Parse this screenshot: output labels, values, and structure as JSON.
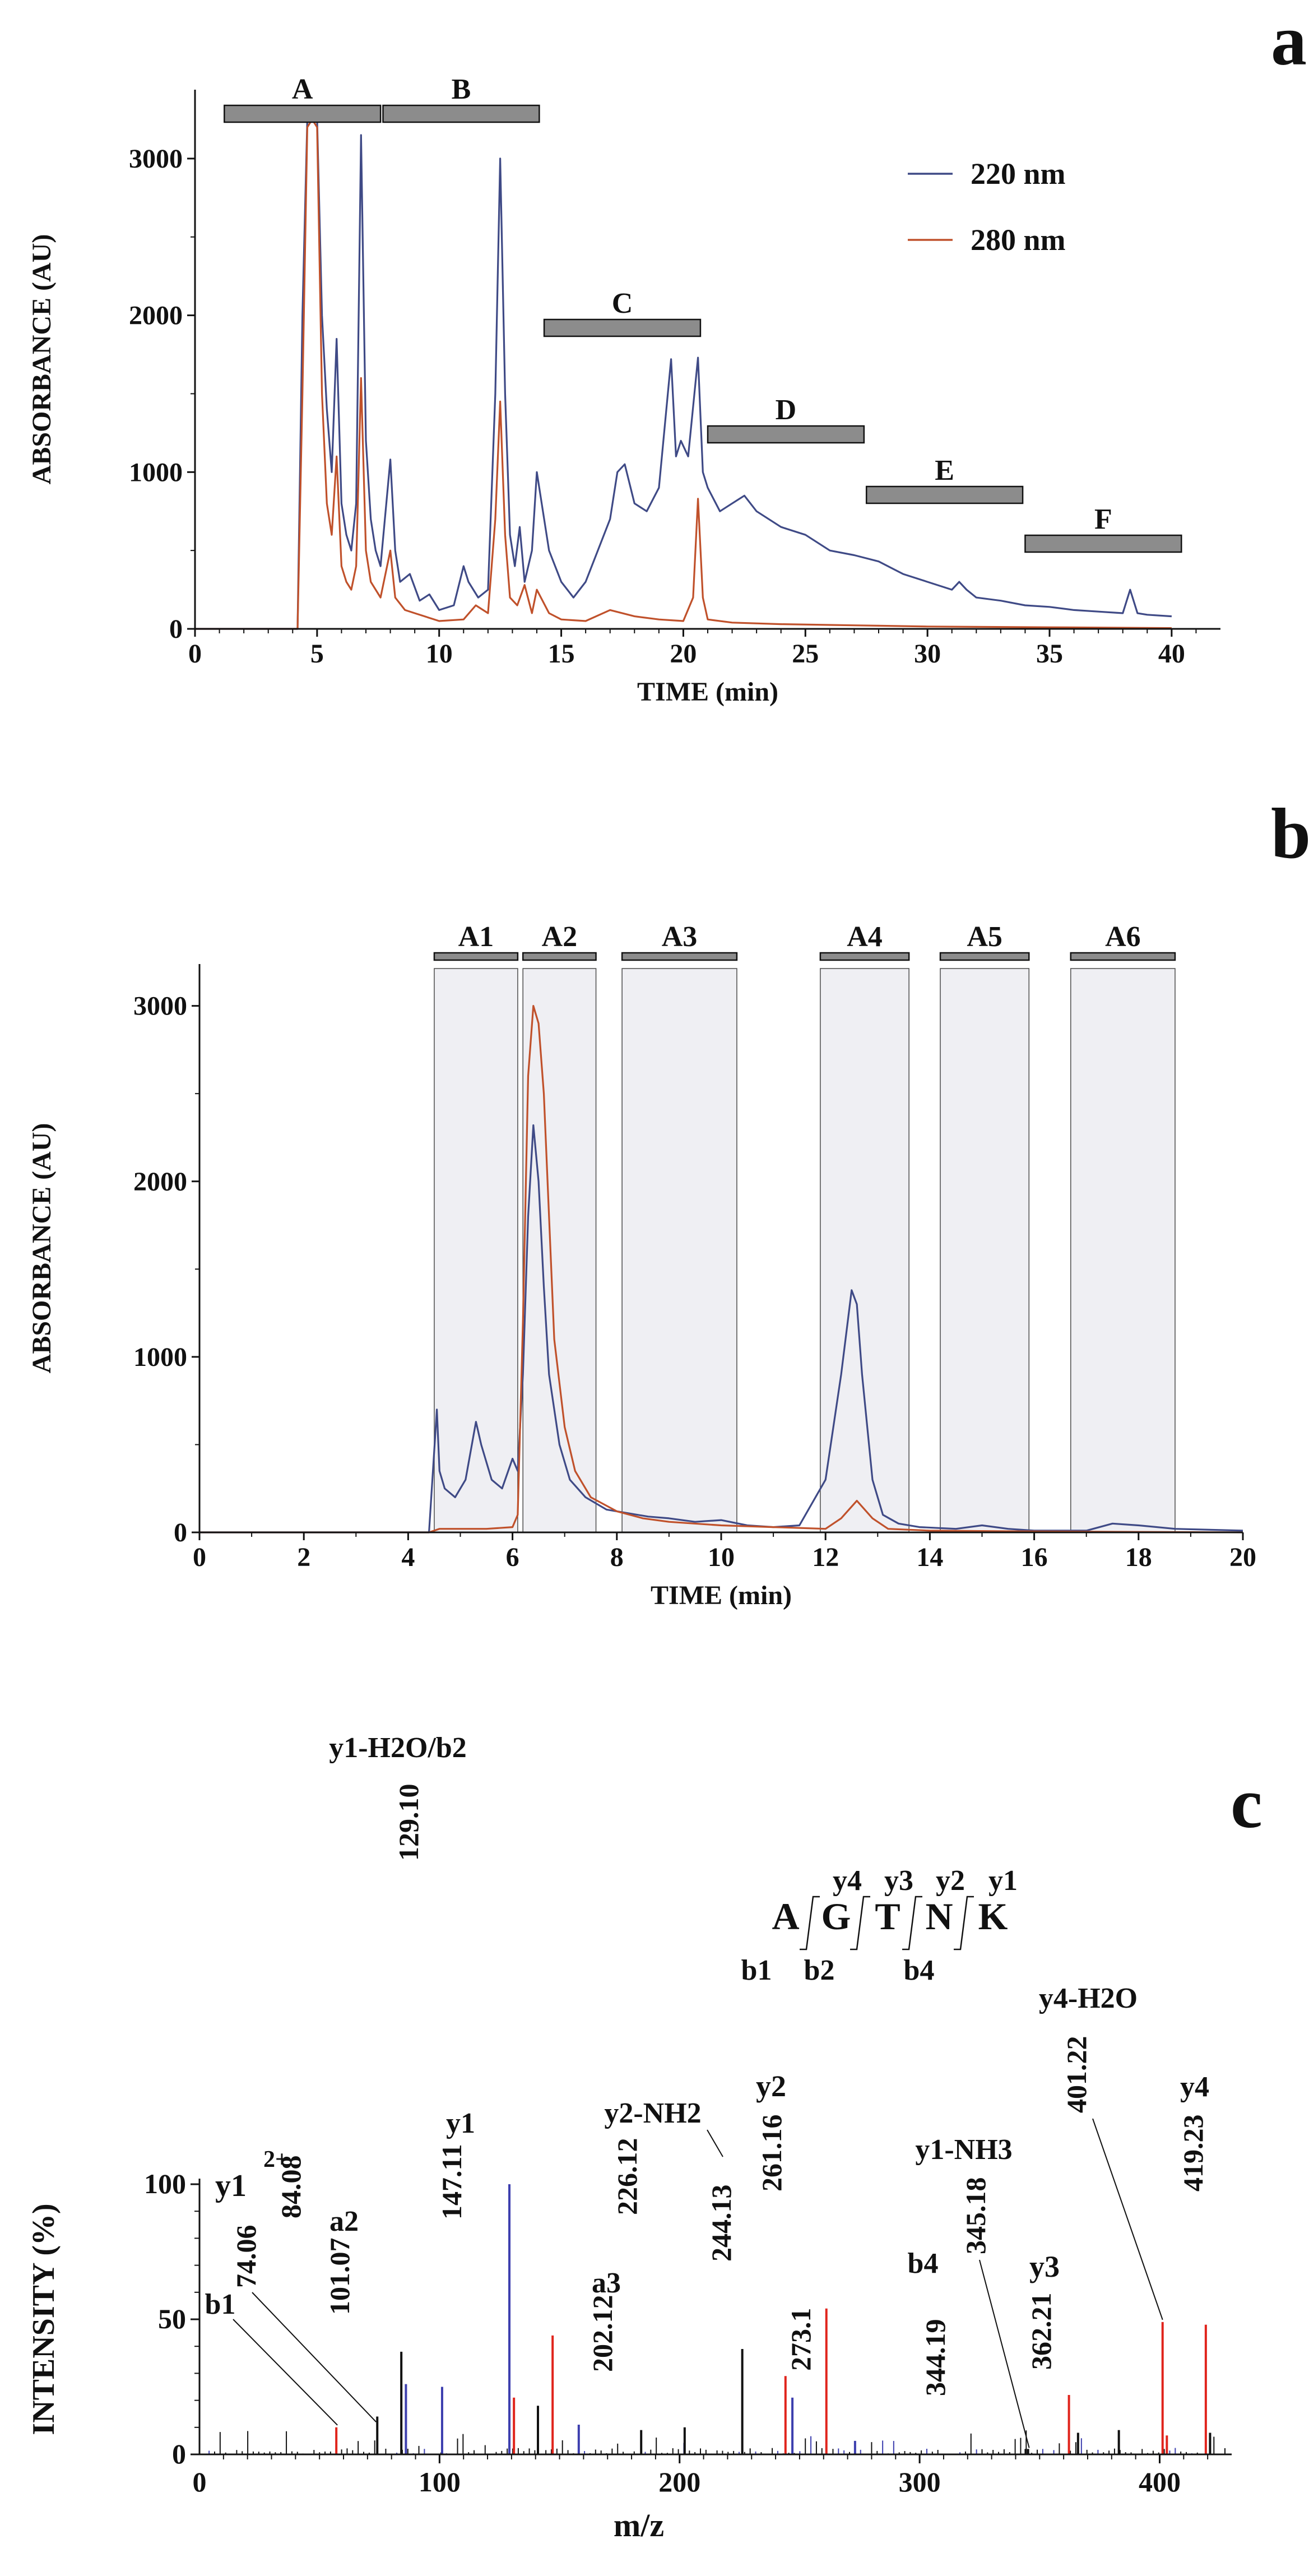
{
  "colors": {
    "line_220": "#3f4a86",
    "line_280": "#c0512b",
    "bar_fill": "#8c8c8c",
    "shade_fill": "#efeff3",
    "spec_black": "#111111",
    "spec_red": "#e0241c",
    "spec_blue": "#3d3fae"
  },
  "chart_data": [
    {
      "panel": "a",
      "type": "line",
      "xlabel": "TIME (min)",
      "ylabel": "ABSORBANCE (AU)",
      "xlim": [
        0,
        42
      ],
      "ylim": [
        0,
        3300
      ],
      "xticks": [
        0,
        5,
        10,
        15,
        20,
        25,
        30,
        35,
        40
      ],
      "yticks": [
        0,
        1000,
        2000,
        3000
      ],
      "legend": [
        "220 nm",
        "280 nm"
      ],
      "fractions": [
        {
          "label": "A",
          "start": 1.2,
          "end": 7.6
        },
        {
          "label": "B",
          "start": 7.7,
          "end": 14.1
        },
        {
          "label": "C",
          "start": 14.3,
          "end": 20.7
        },
        {
          "label": "D",
          "start": 21.0,
          "end": 27.4
        },
        {
          "label": "E",
          "start": 27.5,
          "end": 33.9
        },
        {
          "label": "F",
          "start": 34.0,
          "end": 40.4
        }
      ],
      "series": [
        {
          "name": "220 nm",
          "x": [
            0,
            4.2,
            4.4,
            4.6,
            4.8,
            5.0,
            5.2,
            5.4,
            5.6,
            5.8,
            6.0,
            6.2,
            6.4,
            6.6,
            6.8,
            7.0,
            7.2,
            7.4,
            7.6,
            8.0,
            8.2,
            8.4,
            8.8,
            9.2,
            9.6,
            10.0,
            10.6,
            11.0,
            11.2,
            11.6,
            12.0,
            12.3,
            12.5,
            12.7,
            12.9,
            13.1,
            13.3,
            13.5,
            13.8,
            14.0,
            14.2,
            14.5,
            15.0,
            15.5,
            16.0,
            16.5,
            17.0,
            17.3,
            17.6,
            18.0,
            18.5,
            19.0,
            19.5,
            19.7,
            19.9,
            20.2,
            20.6,
            20.8,
            21.0,
            21.5,
            22.0,
            22.5,
            23.0,
            23.5,
            24.0,
            25.0,
            26.0,
            27.0,
            28.0,
            29.0,
            30.0,
            31.0,
            31.3,
            31.6,
            32.0,
            33.0,
            34.0,
            35.0,
            36.0,
            37.0,
            38.0,
            38.3,
            38.6,
            39.0,
            40.0
          ],
          "y": [
            0,
            0,
            2000,
            3250,
            3270,
            3250,
            2000,
            1400,
            1000,
            1850,
            800,
            600,
            500,
            800,
            3150,
            1200,
            700,
            500,
            400,
            1080,
            500,
            300,
            350,
            180,
            220,
            120,
            150,
            400,
            300,
            200,
            250,
            1500,
            3000,
            1500,
            600,
            400,
            650,
            300,
            500,
            1000,
            800,
            500,
            300,
            200,
            300,
            500,
            700,
            1000,
            1050,
            800,
            750,
            900,
            1720,
            1100,
            1200,
            1100,
            1730,
            1000,
            900,
            750,
            800,
            850,
            750,
            700,
            650,
            600,
            500,
            470,
            430,
            350,
            300,
            250,
            300,
            250,
            200,
            180,
            150,
            140,
            120,
            110,
            100,
            250,
            100,
            90,
            80
          ]
        },
        {
          "name": "280 nm",
          "x": [
            0,
            4.2,
            4.4,
            4.6,
            4.8,
            5.0,
            5.2,
            5.4,
            5.6,
            5.8,
            6.0,
            6.2,
            6.4,
            6.6,
            6.8,
            7.0,
            7.2,
            7.6,
            8.0,
            8.2,
            8.6,
            9.0,
            10.0,
            11.0,
            11.5,
            12.0,
            12.3,
            12.5,
            12.7,
            12.9,
            13.2,
            13.5,
            13.8,
            14.0,
            14.5,
            15.0,
            16.0,
            17.0,
            18.0,
            19.0,
            20.0,
            20.4,
            20.6,
            20.8,
            21.0,
            22.0,
            24.0,
            26.0,
            28.0,
            30.0,
            35.0,
            40.0
          ],
          "y": [
            0,
            0,
            1500,
            3200,
            3250,
            3200,
            1500,
            800,
            600,
            1100,
            400,
            300,
            250,
            400,
            1600,
            500,
            300,
            200,
            500,
            200,
            120,
            100,
            50,
            60,
            150,
            100,
            700,
            1450,
            600,
            200,
            150,
            280,
            100,
            250,
            100,
            60,
            50,
            120,
            80,
            60,
            50,
            200,
            830,
            200,
            60,
            40,
            30,
            25,
            20,
            15,
            10,
            5
          ]
        }
      ]
    },
    {
      "panel": "b",
      "type": "line",
      "xlabel": "TIME (min)",
      "ylabel": "ABSORBANCE (AU)",
      "xlim": [
        0,
        20
      ],
      "ylim": [
        0,
        3200
      ],
      "xticks": [
        0,
        2,
        4,
        6,
        8,
        10,
        12,
        14,
        16,
        18,
        20
      ],
      "yticks": [
        0,
        1000,
        2000,
        3000
      ],
      "fractions": [
        {
          "label": "A1",
          "start": 4.5,
          "end": 6.1
        },
        {
          "label": "A2",
          "start": 6.2,
          "end": 7.6
        },
        {
          "label": "A3",
          "start": 8.1,
          "end": 10.3
        },
        {
          "label": "A4",
          "start": 11.9,
          "end": 13.6
        },
        {
          "label": "A5",
          "start": 14.2,
          "end": 15.9
        },
        {
          "label": "A6",
          "start": 16.7,
          "end": 18.7
        }
      ],
      "series": [
        {
          "name": "220 nm",
          "x": [
            0,
            4.4,
            4.55,
            4.6,
            4.7,
            4.9,
            5.1,
            5.3,
            5.4,
            5.6,
            5.8,
            6.0,
            6.1,
            6.2,
            6.3,
            6.4,
            6.5,
            6.6,
            6.7,
            6.9,
            7.1,
            7.4,
            7.8,
            8.2,
            8.6,
            9.0,
            9.5,
            10.0,
            10.5,
            11.0,
            11.5,
            12.0,
            12.3,
            12.5,
            12.6,
            12.7,
            12.9,
            13.1,
            13.4,
            13.8,
            14.5,
            15.0,
            15.5,
            16.0,
            17.0,
            17.5,
            18.0,
            18.7,
            20.0
          ],
          "y": [
            0,
            0,
            700,
            350,
            250,
            200,
            300,
            630,
            500,
            300,
            250,
            420,
            350,
            900,
            1800,
            2320,
            2000,
            1400,
            900,
            500,
            300,
            200,
            130,
            110,
            90,
            80,
            60,
            70,
            40,
            30,
            40,
            300,
            900,
            1380,
            1300,
            900,
            300,
            100,
            50,
            30,
            20,
            40,
            20,
            10,
            10,
            50,
            40,
            20,
            10
          ]
        },
        {
          "name": "280 nm",
          "x": [
            0,
            4.4,
            4.6,
            5.0,
            5.5,
            6.0,
            6.1,
            6.2,
            6.3,
            6.4,
            6.5,
            6.6,
            6.7,
            6.8,
            7.0,
            7.2,
            7.5,
            8.0,
            8.5,
            9.0,
            10.0,
            11.0,
            12.0,
            12.3,
            12.6,
            12.9,
            13.2,
            14.0,
            16.0,
            20.0
          ],
          "y": [
            0,
            0,
            20,
            20,
            20,
            30,
            100,
            1200,
            2600,
            3000,
            2900,
            2500,
            1800,
            1100,
            600,
            350,
            200,
            120,
            80,
            60,
            40,
            30,
            20,
            80,
            180,
            80,
            20,
            10,
            5,
            0
          ]
        }
      ]
    },
    {
      "panel": "c",
      "type": "bar",
      "xlabel": "m/z",
      "ylabel": "INTENSITY (%)",
      "xlim": [
        0,
        430
      ],
      "ylim": [
        0,
        100
      ],
      "xticks": [
        0,
        100,
        200,
        300,
        400
      ],
      "yticks": [
        0,
        50,
        100
      ],
      "sequence": {
        "residues": [
          "A",
          "G",
          "T",
          "N",
          "K"
        ],
        "y_ions": [
          "y4",
          "y3",
          "y2",
          "y1"
        ],
        "b_ions": [
          "b1",
          "b2",
          "b4"
        ]
      },
      "peaks": [
        {
          "mz": 57,
          "intensity": 10,
          "ion": "b1",
          "color": "red"
        },
        {
          "mz": 74.06,
          "intensity": 14,
          "ion": "",
          "color": "black"
        },
        {
          "mz": 84.08,
          "intensity": 38,
          "ion": "",
          "color": "black"
        },
        {
          "mz": 86,
          "intensity": 26,
          "ion": "",
          "color": "blue"
        },
        {
          "mz": 101.07,
          "intensity": 25,
          "ion": "a2",
          "color": "blue"
        },
        {
          "mz": 129.1,
          "intensity": 100,
          "ion": "y1-H2O/b2",
          "color": "blue"
        },
        {
          "mz": 131,
          "intensity": 21,
          "ion": "",
          "color": "red"
        },
        {
          "mz": 141,
          "intensity": 18,
          "ion": "",
          "color": "black"
        },
        {
          "mz": 147.11,
          "intensity": 44,
          "ion": "y1",
          "color": "red"
        },
        {
          "mz": 158,
          "intensity": 11,
          "ion": "",
          "color": "blue"
        },
        {
          "mz": 184,
          "intensity": 9,
          "ion": "",
          "color": "black"
        },
        {
          "mz": 202.12,
          "intensity": 10,
          "ion": "a3",
          "color": "black"
        },
        {
          "mz": 226.12,
          "intensity": 39,
          "ion": "",
          "color": "black"
        },
        {
          "mz": 244.13,
          "intensity": 29,
          "ion": "y2-NH2",
          "color": "red"
        },
        {
          "mz": 247,
          "intensity": 21,
          "ion": "",
          "color": "blue"
        },
        {
          "mz": 261.16,
          "intensity": 54,
          "ion": "y2",
          "color": "red"
        },
        {
          "mz": 273.1,
          "intensity": 5,
          "ion": "",
          "color": "blue"
        },
        {
          "mz": 344.19,
          "intensity": 2,
          "ion": "b4",
          "color": "black"
        },
        {
          "mz": 345.18,
          "intensity": 2,
          "ion": "y1-NH3",
          "color": "black"
        },
        {
          "mz": 362.21,
          "intensity": 22,
          "ion": "y3",
          "color": "red"
        },
        {
          "mz": 366,
          "intensity": 8,
          "ion": "",
          "color": "black"
        },
        {
          "mz": 383,
          "intensity": 9,
          "ion": "",
          "color": "black"
        },
        {
          "mz": 401.22,
          "intensity": 49,
          "ion": "y4-H2O",
          "color": "red"
        },
        {
          "mz": 403,
          "intensity": 7,
          "ion": "",
          "color": "red"
        },
        {
          "mz": 419.23,
          "intensity": 48,
          "ion": "y4",
          "color": "red"
        },
        {
          "mz": 421,
          "intensity": 8,
          "ion": "",
          "color": "black"
        }
      ],
      "annotations": [
        {
          "text": "b1",
          "mz": 57
        },
        {
          "text": "y1",
          "mz": 74.06,
          "sup": "2+"
        },
        {
          "text": "74.06",
          "mz": 74.06
        },
        {
          "text": "84.08",
          "mz": 84.08
        },
        {
          "text": "a2",
          "mz": 101.07
        },
        {
          "text": "101.07",
          "mz": 101.07
        },
        {
          "text": "y1-H2O/b2",
          "mz": 129.1
        },
        {
          "text": "129.10",
          "mz": 129.1
        },
        {
          "text": "y1",
          "mz": 147.11
        },
        {
          "text": "147.11",
          "mz": 147.11
        },
        {
          "text": "a3",
          "mz": 202.12
        },
        {
          "text": "202.12",
          "mz": 202.12
        },
        {
          "text": "226.12",
          "mz": 226.12
        },
        {
          "text": "y2-NH2",
          "mz": 244.13
        },
        {
          "text": "244.13",
          "mz": 244.13
        },
        {
          "text": "y2",
          "mz": 261.16
        },
        {
          "text": "261.16",
          "mz": 261.16
        },
        {
          "text": "273.1",
          "mz": 273.1
        },
        {
          "text": "b4",
          "mz": 344.19
        },
        {
          "text": "344.19",
          "mz": 344.19
        },
        {
          "text": "y1-NH3",
          "mz": 345.18
        },
        {
          "text": "345.18",
          "mz": 345.18
        },
        {
          "text": "y3",
          "mz": 362.21
        },
        {
          "text": "362.21",
          "mz": 362.21
        },
        {
          "text": "y4-H2O",
          "mz": 401.22
        },
        {
          "text": "401.22",
          "mz": 401.22
        },
        {
          "text": "y4",
          "mz": 419.23
        },
        {
          "text": "419.23",
          "mz": 419.23
        }
      ]
    }
  ]
}
